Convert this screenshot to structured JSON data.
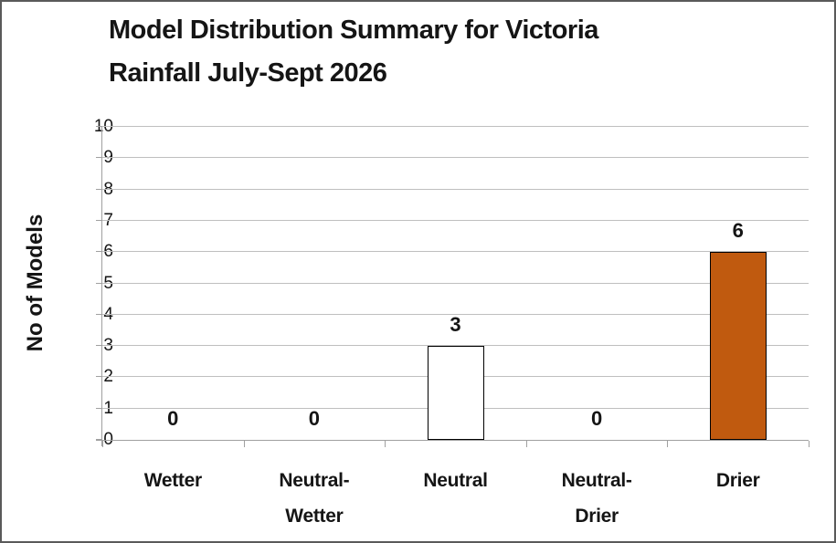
{
  "chart_data": {
    "type": "bar",
    "title": "Model Distribution Summary for Victoria Rainfall July-Sept 2026",
    "title_lines": [
      "Model Distribution Summary for Victoria",
      "Rainfall July-Sept 2026"
    ],
    "ylabel": "No of Models",
    "xlabel": "",
    "categories": [
      "Wetter",
      "Neutral-Wetter",
      "Neutral",
      "Neutral-Drier",
      "Drier"
    ],
    "category_lines": [
      [
        "Wetter"
      ],
      [
        "Neutral-",
        "Wetter"
      ],
      [
        "Neutral"
      ],
      [
        "Neutral-",
        "Drier"
      ],
      [
        "Drier"
      ]
    ],
    "values": [
      0,
      0,
      3,
      0,
      6
    ],
    "data_labels": [
      "0",
      "0",
      "3",
      "0",
      "6"
    ],
    "ylim": [
      0,
      10
    ],
    "ytick_step": 1,
    "ytick_labels": [
      "0",
      "1",
      "2",
      "3",
      "4",
      "5",
      "6",
      "7",
      "8",
      "9",
      "10"
    ],
    "grid": true,
    "legend": false,
    "colors": {
      "bar_fills": [
        "#FFFFFF",
        "#FFFFFF",
        "#FFFFFF",
        "#FFFFFF",
        "#C05A0F"
      ],
      "bar_border": "#000000",
      "gridline": "#BFBFBF",
      "axis": "#A0A0A0",
      "text": "#151515"
    }
  }
}
